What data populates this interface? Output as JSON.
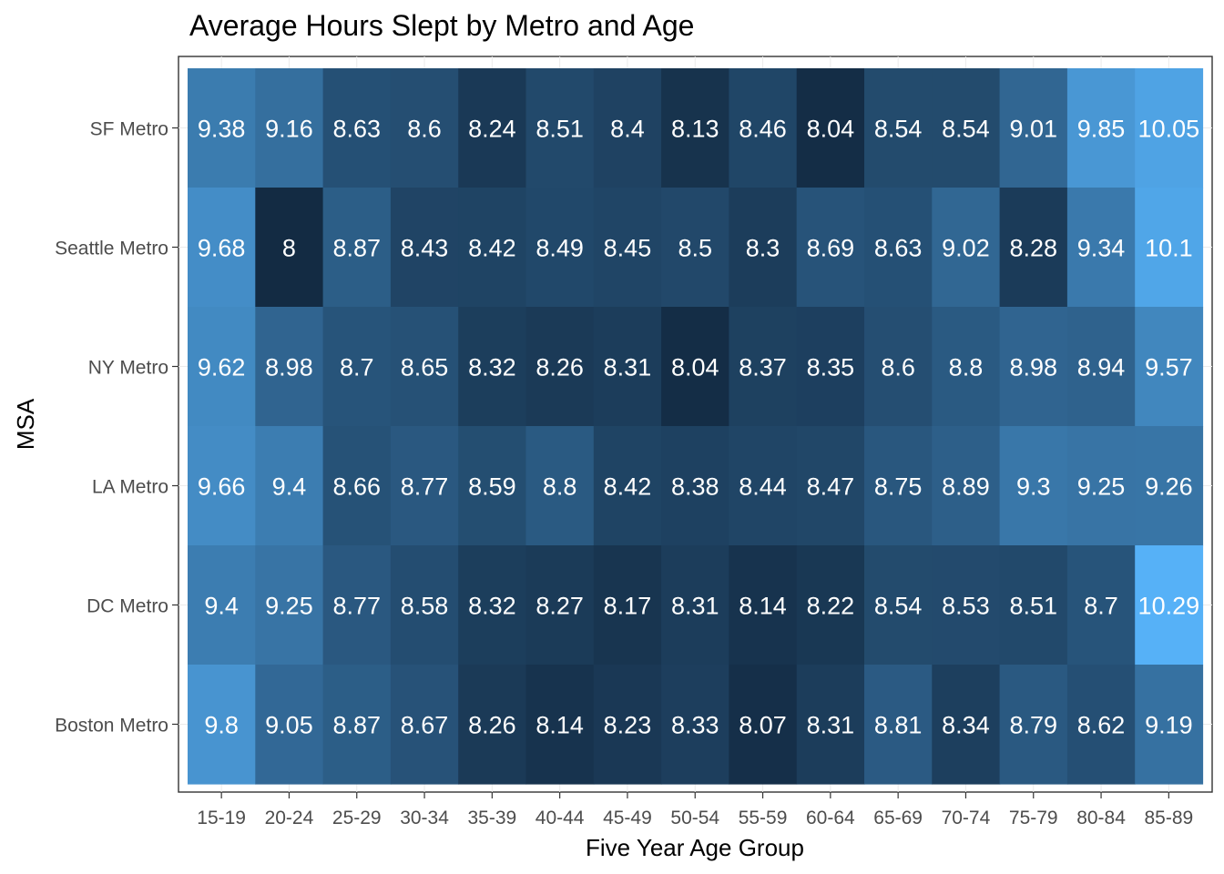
{
  "chart_data": {
    "type": "heatmap",
    "title": "Average Hours Slept by Metro and Age",
    "xlabel": "Five Year Age Group",
    "ylabel": "MSA",
    "x_categories": [
      "15-19",
      "20-24",
      "25-29",
      "30-34",
      "35-39",
      "40-44",
      "45-49",
      "50-54",
      "55-59",
      "60-64",
      "65-69",
      "70-74",
      "75-79",
      "80-84",
      "85-89"
    ],
    "y_categories": [
      "SF Metro",
      "Seattle Metro",
      "NY Metro",
      "LA Metro",
      "DC Metro",
      "Boston Metro"
    ],
    "values": [
      [
        "9.38",
        "9.16",
        "8.63",
        "8.6",
        "8.24",
        "8.51",
        "8.4",
        "8.13",
        "8.46",
        "8.04",
        "8.54",
        "8.54",
        "9.01",
        "9.85",
        "10.05"
      ],
      [
        "9.68",
        "8",
        "8.87",
        "8.43",
        "8.42",
        "8.49",
        "8.45",
        "8.5",
        "8.3",
        "8.69",
        "8.63",
        "9.02",
        "8.28",
        "9.34",
        "10.1"
      ],
      [
        "9.62",
        "8.98",
        "8.7",
        "8.65",
        "8.32",
        "8.26",
        "8.31",
        "8.04",
        "8.37",
        "8.35",
        "8.6",
        "8.8",
        "8.98",
        "8.94",
        "9.57"
      ],
      [
        "9.66",
        "9.4",
        "8.66",
        "8.77",
        "8.59",
        "8.8",
        "8.42",
        "8.38",
        "8.44",
        "8.47",
        "8.75",
        "8.89",
        "9.3",
        "9.25",
        "9.26"
      ],
      [
        "9.4",
        "9.25",
        "8.77",
        "8.58",
        "8.32",
        "8.27",
        "8.17",
        "8.31",
        "8.14",
        "8.22",
        "8.54",
        "8.53",
        "8.51",
        "8.7",
        "10.29"
      ],
      [
        "9.8",
        "9.05",
        "8.87",
        "8.67",
        "8.26",
        "8.14",
        "8.23",
        "8.33",
        "8.07",
        "8.31",
        "8.81",
        "8.34",
        "8.79",
        "8.62",
        "9.19"
      ]
    ],
    "color_low": "#132B43",
    "color_high": "#56B1F7",
    "grid": true,
    "legend": "none"
  }
}
